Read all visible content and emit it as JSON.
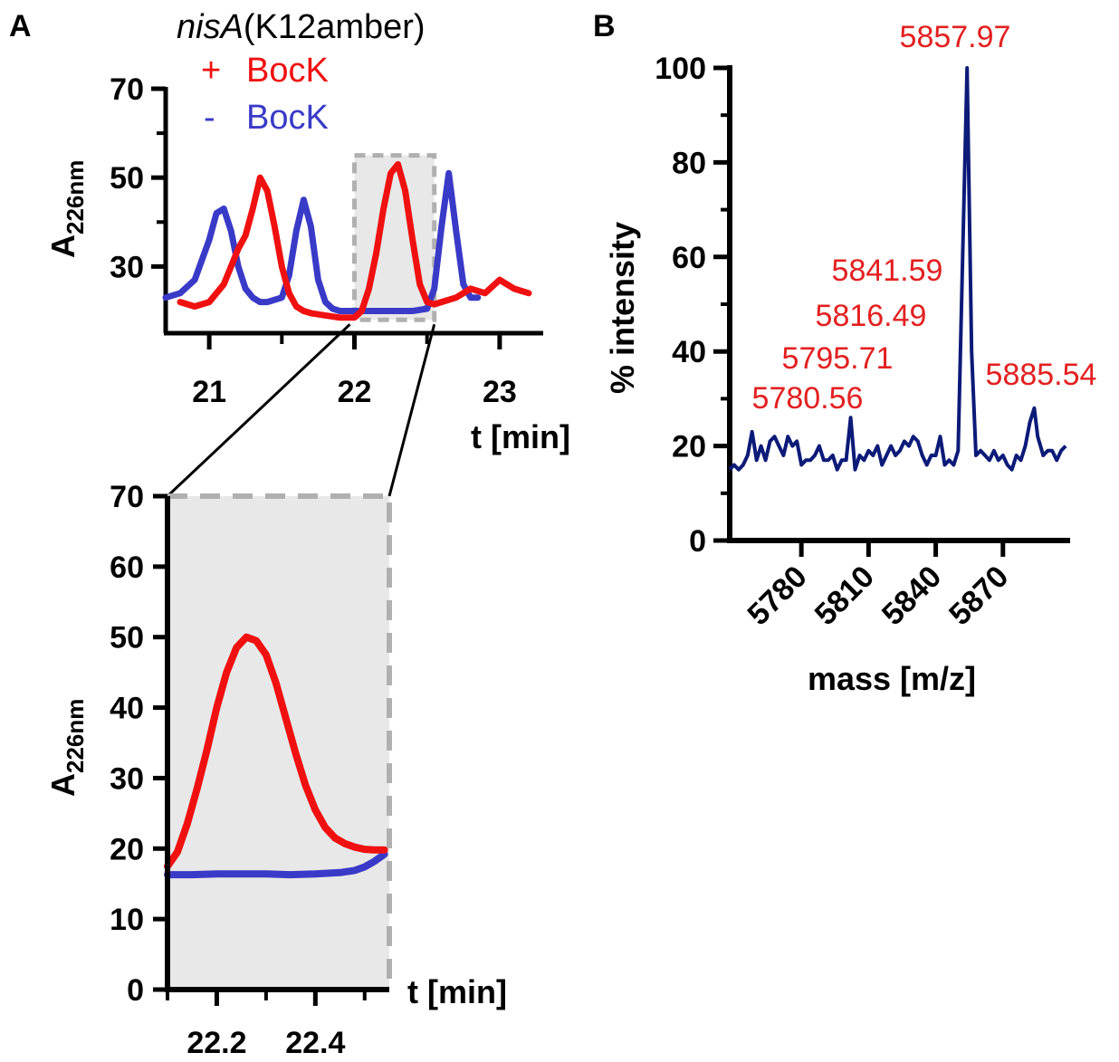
{
  "colors": {
    "plus": "#f01010",
    "minus": "#3a3ac8",
    "ms_line": "#0c1a78",
    "label": "#e32020",
    "zoom_fill": "#e8e8e8",
    "zoom_border": "#b0b0b0"
  },
  "panel_letters": {
    "a": "A",
    "b": "B"
  },
  "legend": {
    "title_italic": "nisA",
    "title_rest": "(K12amber)",
    "plus_sign": "+",
    "plus_label": "BocK",
    "minus_sign": "-",
    "minus_label": "BocK"
  },
  "chart_data": [
    {
      "id": "chromatogram-full",
      "type": "line",
      "xlabel": "t [min]",
      "ylabel_main": "A",
      "ylabel_sub": "226nm",
      "xlim": [
        20.7,
        23.3
      ],
      "ylim": [
        15,
        70
      ],
      "xticks": [
        21,
        22,
        23
      ],
      "xtick_labels": [
        "21",
        "22",
        "23"
      ],
      "yticks": [
        30,
        50,
        70
      ],
      "ytick_labels": [
        "30",
        "50",
        "70"
      ],
      "zoom_region": {
        "x": [
          22.0,
          22.55
        ],
        "y": [
          18,
          55
        ]
      },
      "series": [
        {
          "name": "+ BocK",
          "color_key": "plus",
          "x": [
            20.8,
            20.9,
            21.0,
            21.1,
            21.15,
            21.2,
            21.25,
            21.3,
            21.35,
            21.4,
            21.45,
            21.5,
            21.55,
            21.6,
            21.65,
            21.7,
            21.8,
            21.9,
            22.0,
            22.05,
            22.1,
            22.15,
            22.2,
            22.25,
            22.3,
            22.35,
            22.4,
            22.45,
            22.5,
            22.55,
            22.6,
            22.7,
            22.8,
            22.9,
            23.0,
            23.1,
            23.2
          ],
          "y": [
            22,
            21,
            22,
            26,
            30,
            34,
            37,
            43,
            50,
            47,
            39,
            30,
            24,
            21,
            20,
            19.5,
            19,
            18.5,
            18.5,
            20,
            25,
            33,
            43,
            51,
            53,
            47,
            36,
            26,
            22,
            21.5,
            22,
            23,
            25,
            24,
            27,
            25,
            24
          ]
        },
        {
          "name": "- BocK",
          "color_key": "minus",
          "x": [
            20.7,
            20.8,
            20.9,
            21.0,
            21.05,
            21.1,
            21.15,
            21.2,
            21.25,
            21.3,
            21.35,
            21.4,
            21.5,
            21.55,
            21.6,
            21.65,
            21.7,
            21.75,
            21.8,
            21.85,
            21.9,
            22.0,
            22.1,
            22.2,
            22.3,
            22.4,
            22.5,
            22.55,
            22.6,
            22.65,
            22.7,
            22.75,
            22.8,
            22.85
          ],
          "y": [
            23,
            24,
            27,
            36,
            42,
            43,
            38,
            30,
            25,
            23,
            22,
            22,
            23,
            28,
            38,
            45,
            39,
            27,
            22,
            20.5,
            20,
            20,
            20,
            20,
            20,
            20,
            20.5,
            25,
            39,
            51,
            38,
            26,
            23,
            23
          ]
        }
      ]
    },
    {
      "id": "chromatogram-zoom",
      "type": "line",
      "xlabel": "t [min]",
      "ylabel_main": "A",
      "ylabel_sub": "226nm",
      "xlim": [
        22.1,
        22.55
      ],
      "ylim": [
        0,
        70
      ],
      "xticks": [
        22.2,
        22.4
      ],
      "xtick_labels": [
        "22.2",
        "22.4"
      ],
      "yticks": [
        0,
        10,
        20,
        30,
        40,
        50,
        60,
        70
      ],
      "ytick_labels": [
        "0",
        "10",
        "20",
        "30",
        "40",
        "50",
        "60",
        "70"
      ],
      "series": [
        {
          "name": "+ BocK",
          "color_key": "plus",
          "x": [
            22.1,
            22.12,
            22.14,
            22.16,
            22.18,
            22.2,
            22.22,
            22.24,
            22.26,
            22.28,
            22.3,
            22.32,
            22.34,
            22.36,
            22.38,
            22.4,
            22.42,
            22.44,
            22.46,
            22.48,
            22.5,
            22.52,
            22.54
          ],
          "y": [
            17.5,
            19.5,
            23.5,
            28.5,
            34,
            40,
            45,
            48.5,
            50,
            49.5,
            47.5,
            43.5,
            38.5,
            33.5,
            29,
            25.5,
            23,
            21.5,
            20.7,
            20.2,
            19.9,
            19.8,
            19.8
          ]
        },
        {
          "name": "- BocK",
          "color_key": "minus",
          "x": [
            22.1,
            22.15,
            22.2,
            22.25,
            22.3,
            22.35,
            22.4,
            22.45,
            22.48,
            22.5,
            22.52,
            22.54
          ],
          "y": [
            16.3,
            16.3,
            16.4,
            16.4,
            16.4,
            16.3,
            16.4,
            16.6,
            16.9,
            17.4,
            18.2,
            19.2
          ]
        }
      ]
    },
    {
      "id": "mass-spectrum",
      "type": "line",
      "xlabel": "mass [m/z]",
      "ylabel": "% intensity",
      "xlim": [
        5748,
        5900
      ],
      "ylim": [
        0,
        100
      ],
      "xticks": [
        5780,
        5810,
        5840,
        5870
      ],
      "xtick_labels": [
        "5780",
        "5810",
        "5840",
        "5870"
      ],
      "yticks": [
        0,
        20,
        40,
        60,
        80,
        100
      ],
      "ytick_labels": [
        "0",
        "20",
        "40",
        "60",
        "80",
        "100"
      ],
      "series": [
        {
          "name": "spectrum",
          "color_key": "ms_line",
          "x": [
            5748,
            5750,
            5752,
            5754,
            5756,
            5758,
            5760,
            5762,
            5764,
            5766,
            5768,
            5770,
            5772,
            5774,
            5776,
            5778,
            5780,
            5782,
            5784,
            5786,
            5788,
            5790,
            5792,
            5794,
            5796,
            5798,
            5800,
            5802,
            5804,
            5806,
            5808,
            5810,
            5812,
            5814,
            5816,
            5818,
            5820,
            5822,
            5824,
            5826,
            5828,
            5830,
            5832,
            5834,
            5836,
            5838,
            5840,
            5842,
            5844,
            5846,
            5848,
            5850,
            5852,
            5854,
            5856,
            5857.97,
            5860,
            5862,
            5864,
            5866,
            5868,
            5870,
            5872,
            5874,
            5876,
            5878,
            5880,
            5882,
            5884,
            5885.54,
            5888,
            5890,
            5892,
            5894,
            5896,
            5898
          ],
          "y": [
            15,
            16,
            15,
            16,
            18,
            23,
            17,
            20,
            17,
            21,
            22,
            20,
            18,
            22,
            20,
            21,
            16,
            17,
            17,
            18,
            20,
            17,
            17,
            18,
            15,
            17,
            17,
            26,
            15,
            18,
            17,
            19,
            18,
            20,
            16,
            18,
            20,
            18,
            19,
            21,
            20,
            22,
            21,
            18,
            16,
            18,
            18,
            22,
            16,
            17,
            16,
            19,
            60,
            100,
            40,
            18,
            19,
            18,
            17,
            19,
            17,
            18,
            16,
            15,
            18,
            17,
            20,
            25,
            28,
            22,
            18,
            19,
            19,
            17,
            19,
            20
          ]
        }
      ],
      "annotations": [
        "5857.97",
        "5841.59",
        "5816.49",
        "5795.71",
        "5780.56",
        "5885.54"
      ]
    }
  ]
}
